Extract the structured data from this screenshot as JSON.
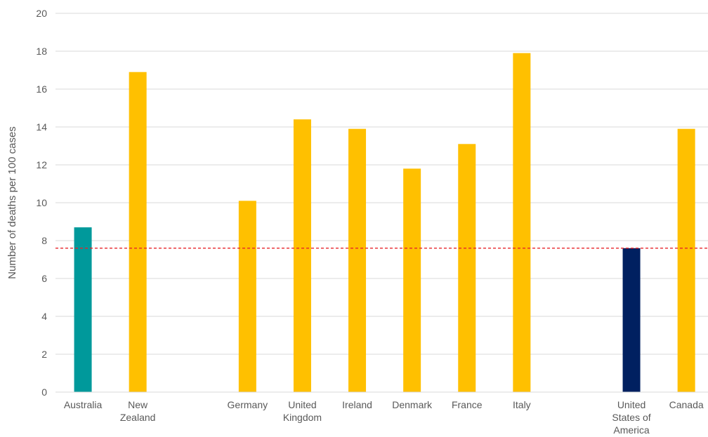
{
  "chart_data": {
    "type": "bar",
    "ylabel": "Number of deaths per 100 cases",
    "xlabel": "",
    "ylim": [
      0,
      20
    ],
    "yticks": [
      0,
      2,
      4,
      6,
      8,
      10,
      12,
      14,
      16,
      18,
      20
    ],
    "grid": true,
    "reference_line": {
      "value": 7.6,
      "color": "#e8242a",
      "style": "dashed"
    },
    "categories": [
      "Australia",
      "New Zealand",
      "",
      "Germany",
      "United Kingdom",
      "Ireland",
      "Denmark",
      "France",
      "Italy",
      "",
      "United States of America",
      "Canada"
    ],
    "category_label_lines": [
      [
        "Australia"
      ],
      [
        "New",
        "Zealand"
      ],
      [],
      [
        "Germany"
      ],
      [
        "United",
        "Kingdom"
      ],
      [
        "Ireland"
      ],
      [
        "Denmark"
      ],
      [
        "France"
      ],
      [
        "Italy"
      ],
      [],
      [
        "United",
        "States of",
        "America"
      ],
      [
        "Canada"
      ]
    ],
    "values": [
      8.7,
      16.9,
      null,
      10.1,
      14.4,
      13.9,
      11.8,
      13.1,
      17.9,
      null,
      7.6,
      13.9
    ],
    "bar_colors": [
      "#00999b",
      "#ffc000",
      null,
      "#ffc000",
      "#ffc000",
      "#ffc000",
      "#ffc000",
      "#ffc000",
      "#ffc000",
      null,
      "#002060",
      "#ffc000"
    ],
    "gridline_color": "#d9d9d9",
    "axis_color": "#d9d9d9"
  }
}
